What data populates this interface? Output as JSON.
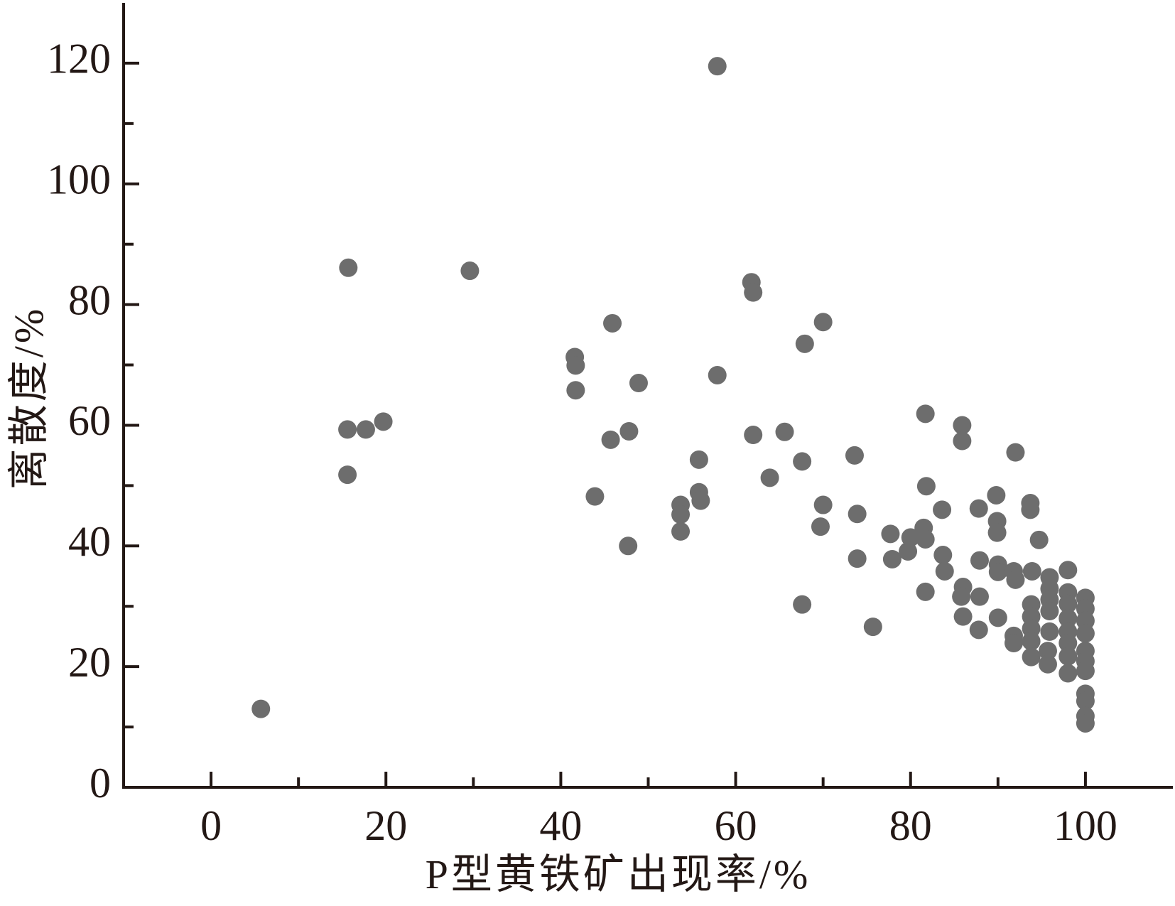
{
  "chart_data": {
    "type": "scatter",
    "x_label": "P型黄铁矿出现率/%",
    "y_label": "离散度/%",
    "color": "#6d6d6d",
    "xlim": [
      -10,
      110
    ],
    "xticks": [
      0,
      20,
      40,
      60,
      80,
      100
    ],
    "xminorticks": [
      10,
      30,
      50,
      70,
      90
    ],
    "ylim": [
      0,
      130
    ],
    "yticks": [
      0,
      20,
      40,
      60,
      80,
      100,
      120
    ],
    "yminorticks": [
      10,
      30,
      50,
      70,
      90,
      110
    ],
    "x": [
      5.7,
      15.7,
      15.6,
      15.6,
      17.7,
      19.7,
      29.6,
      41.6,
      41.7,
      41.7,
      43.9,
      45.9,
      45.7,
      47.8,
      47.7,
      48.9,
      53.7,
      53.7,
      53.7,
      55.8,
      55.8,
      56.0,
      57.9,
      57.9,
      61.8,
      62.0,
      62.0,
      63.9,
      65.6,
      67.6,
      67.6,
      67.9,
      70.0,
      70.0,
      69.7,
      73.6,
      73.9,
      73.9,
      75.7,
      77.7,
      77.9,
      79.7,
      80.0,
      81.5,
      81.7,
      81.7,
      81.8,
      81.7,
      83.6,
      83.7,
      83.9,
      85.9,
      85.9,
      86.0,
      85.8,
      86.0,
      87.8,
      87.9,
      87.9,
      87.8,
      89.8,
      89.9,
      89.9,
      90.0,
      90.0,
      90.0,
      92.0,
      91.8,
      92.0,
      91.8,
      91.8,
      93.7,
      93.7,
      93.9,
      93.8,
      93.8,
      93.8,
      93.8,
      93.8,
      94.7,
      95.9,
      95.9,
      95.9,
      95.9,
      95.9,
      95.7,
      95.7,
      98.0,
      98.0,
      98.0,
      98.0,
      98.0,
      98.0,
      98.0,
      98.0,
      100,
      100,
      100,
      100,
      100,
      100,
      100,
      100,
      100,
      100,
      100
    ],
    "y": [
      13.0,
      86.1,
      59.3,
      51.8,
      59.3,
      60.6,
      85.6,
      71.3,
      69.9,
      65.8,
      48.2,
      76.9,
      57.6,
      59.0,
      40.0,
      67.0,
      46.8,
      45.2,
      42.4,
      54.3,
      48.9,
      47.5,
      119.5,
      68.3,
      83.7,
      82.0,
      58.4,
      51.3,
      58.9,
      54.0,
      30.3,
      73.5,
      77.1,
      46.8,
      43.2,
      55.0,
      45.3,
      37.9,
      26.6,
      42.0,
      37.8,
      39.1,
      41.4,
      43.0,
      41.1,
      61.9,
      49.9,
      32.4,
      46.0,
      38.5,
      35.8,
      60.0,
      57.4,
      33.2,
      31.6,
      28.3,
      46.2,
      37.6,
      31.6,
      26.1,
      48.4,
      44.1,
      42.2,
      36.9,
      35.7,
      28.1,
      55.5,
      35.8,
      34.4,
      25.1,
      23.9,
      47.1,
      46.0,
      35.8,
      30.3,
      28.3,
      26.3,
      24.2,
      21.6,
      41.0,
      34.8,
      32.9,
      31.1,
      29.2,
      25.8,
      22.6,
      20.4,
      36.0,
      32.3,
      30.4,
      28.0,
      25.8,
      23.9,
      21.7,
      18.9,
      31.4,
      29.6,
      27.6,
      25.5,
      22.6,
      20.9,
      19.3,
      15.5,
      14.3,
      11.8,
      10.6
    ]
  }
}
